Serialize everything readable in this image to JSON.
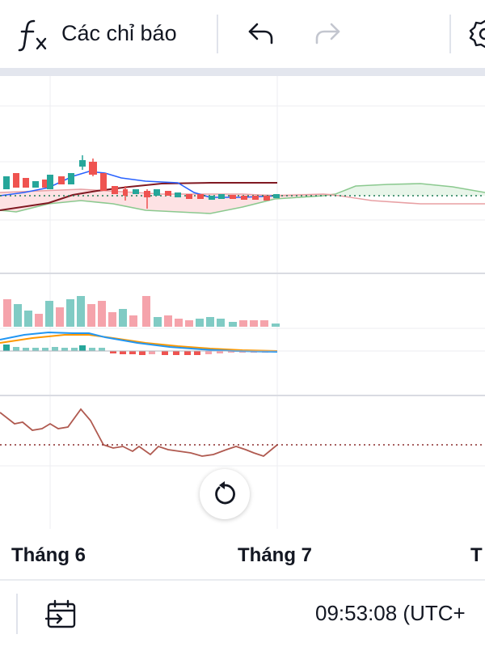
{
  "toolbar": {
    "indicators_label": "Các chỉ báo",
    "fx_icon": "function-icon",
    "undo_icon": "undo-icon",
    "redo_icon": "redo-icon",
    "settings_icon": "gear-icon"
  },
  "chart": {
    "x_axis_labels": [
      "Tháng 6",
      "Tháng 7",
      "T"
    ],
    "colors": {
      "up": "#26a69a",
      "down": "#ef5350",
      "up_volume": "#80cbc4",
      "down_volume": "#f5a3ab",
      "cloud_fill": "#fde2e4",
      "conversion_line": "#2962ff",
      "base_line": "#801922",
      "senkou_a": "#8bc98f",
      "senkou_b": "#e8a0a4",
      "ma_blue": "#2196f3",
      "ma_orange": "#ff9800",
      "oscillator": "#b05a50"
    }
  },
  "reset_icon": "reset-icon",
  "bottombar": {
    "date_range_icon": "date-range-icon",
    "clock_text": "09:53:08 (UTC+"
  }
}
